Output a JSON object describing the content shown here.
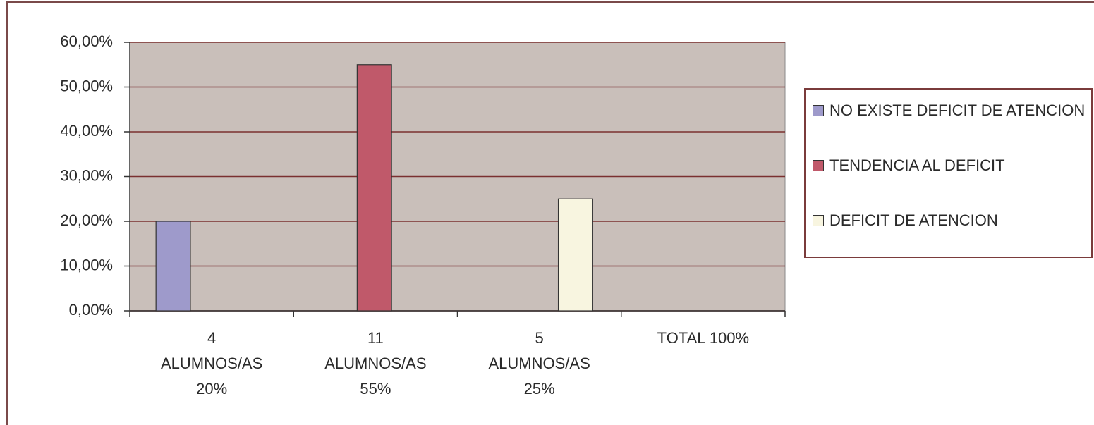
{
  "chart_data": {
    "type": "bar",
    "categories": [
      [
        "4",
        "ALUMNOS/AS",
        "20%"
      ],
      [
        "11",
        "ALUMNOS/AS",
        "55%"
      ],
      [
        "5",
        "ALUMNOS/AS",
        "25%"
      ],
      [
        "TOTAL 100%"
      ]
    ],
    "series": [
      {
        "name": "NO EXISTE DEFICIT DE ATENCION",
        "color": "#9e9acb",
        "values": [
          20,
          null,
          null,
          null
        ]
      },
      {
        "name": "TENDENCIA AL DEFICIT",
        "color": "#c0596a",
        "values": [
          null,
          55,
          null,
          null
        ]
      },
      {
        "name": "DEFICIT DE ATENCION",
        "color": "#f8f5e0",
        "values": [
          null,
          null,
          25,
          null
        ]
      }
    ],
    "ylim": [
      0,
      60
    ],
    "yticks": [
      {
        "value": 0,
        "label": "0,00%"
      },
      {
        "value": 10,
        "label": "10,00%"
      },
      {
        "value": 20,
        "label": "20,00%"
      },
      {
        "value": 30,
        "label": "30,00%"
      },
      {
        "value": 40,
        "label": "40,00%"
      },
      {
        "value": 50,
        "label": "50,00%"
      },
      {
        "value": 60,
        "label": "60,00%"
      }
    ],
    "grid": true,
    "legend": "right"
  }
}
